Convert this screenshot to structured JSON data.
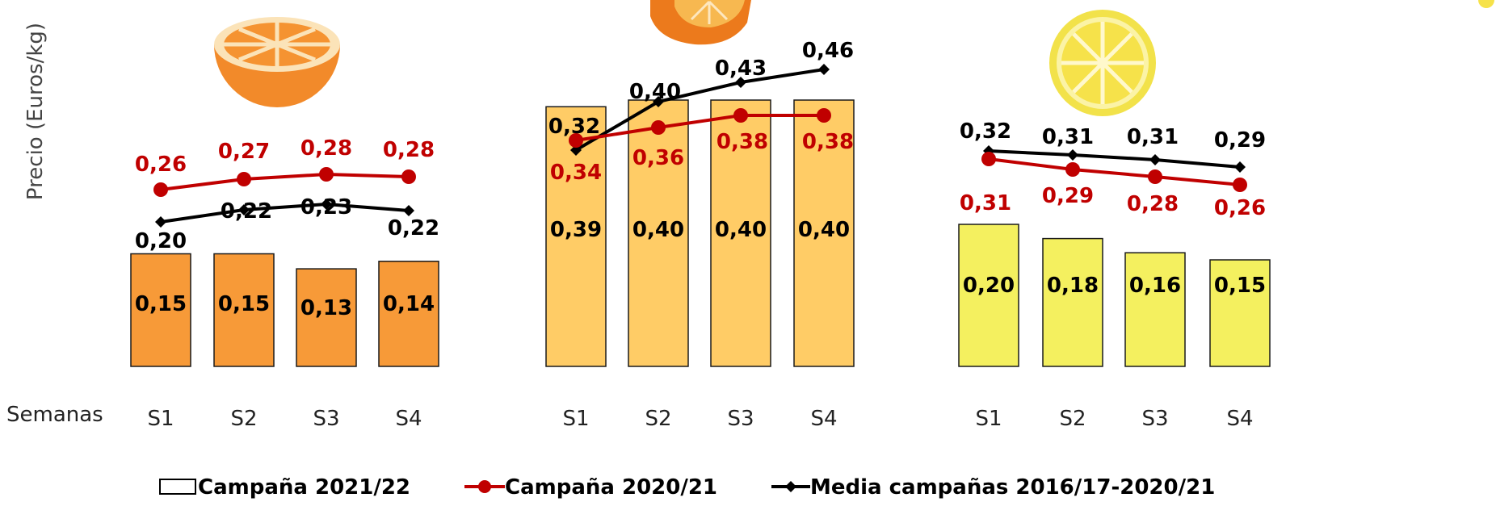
{
  "yaxis_title": "Precio (Euros/kg)",
  "x_axis_title": "Semanas",
  "legend": {
    "bars": "Campaña 2021/22",
    "red": "Campaña 2020/21",
    "black": "Media campañas 2016/17-2020/21"
  },
  "colors": {
    "red_line": "#c00000",
    "black_line": "#000000",
    "panel_bar_fills": [
      "#f79a38",
      "#ffcc66",
      "#f4f05f"
    ],
    "bar_stroke": "#1a1a1a"
  },
  "icons": [
    "orange-half-icon",
    "orange-slice-icon",
    "lemon-slice-icon"
  ],
  "chart_data": [
    {
      "type": "bar",
      "categories": [
        "S1",
        "S2",
        "S3",
        "S4"
      ],
      "series": [
        {
          "name": "Campaña 2021/22",
          "type": "bar",
          "values": [
            0.15,
            0.15,
            0.13,
            0.14
          ],
          "labels": [
            "0,15",
            "0,15",
            "0,13",
            "0,14"
          ]
        },
        {
          "name": "Campaña 2020/21",
          "type": "line",
          "values": [
            0.26,
            0.27,
            0.28,
            0.28
          ],
          "labels": [
            "0,26",
            "0,27",
            "0,28",
            "0,28"
          ]
        },
        {
          "name": "Media campañas 2016/17-2020/21",
          "type": "line",
          "values": [
            0.2,
            0.22,
            0.23,
            0.22
          ],
          "labels": [
            "0,20",
            "0,22",
            "0,23",
            "0,22"
          ]
        }
      ]
    },
    {
      "type": "bar",
      "categories": [
        "S1",
        "S2",
        "S3",
        "S4"
      ],
      "series": [
        {
          "name": "Campaña 2021/22",
          "type": "bar",
          "values": [
            0.39,
            0.4,
            0.4,
            0.4
          ],
          "labels": [
            "0,39",
            "0,40",
            "0,40",
            "0,40"
          ]
        },
        {
          "name": "Campaña 2020/21",
          "type": "line",
          "values": [
            0.34,
            0.36,
            0.38,
            0.38
          ],
          "labels": [
            "0,34",
            "0,36",
            "0,38",
            "0,38"
          ]
        },
        {
          "name": "Media campañas 2016/17-2020/21",
          "type": "line",
          "values": [
            0.32,
            0.4,
            0.43,
            0.46
          ],
          "labels": [
            "0,32",
            "0,40",
            "0,43",
            "0,46"
          ]
        }
      ]
    },
    {
      "type": "bar",
      "categories": [
        "S1",
        "S2",
        "S3",
        "S4"
      ],
      "series": [
        {
          "name": "Campaña 2021/22",
          "type": "bar",
          "values": [
            0.2,
            0.18,
            0.16,
            0.15
          ],
          "labels": [
            "0,20",
            "0,18",
            "0,16",
            "0,15"
          ]
        },
        {
          "name": "Campaña 2020/21",
          "type": "line",
          "values": [
            0.31,
            0.29,
            0.28,
            0.26
          ],
          "labels": [
            "0,31",
            "0,29",
            "0,28",
            "0,26"
          ]
        },
        {
          "name": "Media campañas 2016/17-2020/21",
          "type": "line",
          "values": [
            0.32,
            0.31,
            0.31,
            0.29
          ],
          "labels": [
            "0,32",
            "0,31",
            "0,31",
            "0,29"
          ]
        }
      ]
    }
  ]
}
